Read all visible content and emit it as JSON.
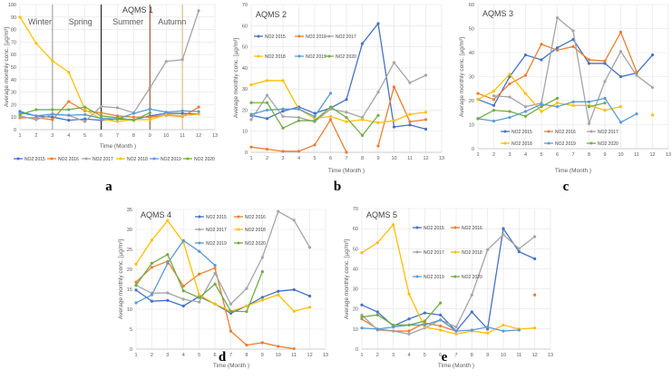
{
  "colors": {
    "NO2 2015": "#4472c4",
    "NO2 2016": "#ed7d31",
    "NO2 2017": "#a5a5a5",
    "NO2 2018": "#ffc000",
    "NO2 2019": "#5b9bd5",
    "NO2 2020": "#70ad47"
  },
  "chart_data": [
    {
      "panel": "a",
      "type": "line",
      "title": "AQMS 1",
      "xlabel": "Time (Month )",
      "ylabel": "Average monthly conc. [µg/m³]",
      "xlim": [
        1,
        13
      ],
      "ylim": [
        0,
        100
      ],
      "ystep": 10,
      "grid": true,
      "legend": "bottom",
      "seasons": [
        {
          "label": "Winter",
          "x": 1.5,
          "boundary": 3,
          "color": "#a6a6a6"
        },
        {
          "label": "Spring",
          "x": 4,
          "boundary": 6,
          "color": "#262626"
        },
        {
          "label": "Summer",
          "x": 6.7,
          "boundary": 9,
          "color": "#a05a3c"
        },
        {
          "label": "Autumn",
          "x": 9.5,
          "boundary": 11,
          "color": "#d9c08c"
        }
      ],
      "series": [
        {
          "name": "NO2 2015",
          "values": [
            14.5,
            11,
            10,
            7.5,
            8.5,
            7.5,
            8.5,
            8,
            11,
            13,
            13,
            12.5
          ]
        },
        {
          "name": "NO2 2016",
          "values": [
            9.5,
            9.5,
            8,
            22.5,
            15,
            13.5,
            11,
            10,
            10,
            11.5,
            10.5,
            18
          ]
        },
        {
          "name": "NO2 2017",
          "values": [
            11,
            8,
            12,
            11.5,
            6.5,
            18.5,
            17.5,
            13.5,
            33.5,
            54.5,
            56,
            95
          ]
        },
        {
          "name": "NO2 2018",
          "values": [
            90,
            69,
            55,
            46,
            16,
            8.5,
            6.5,
            8,
            8,
            12,
            11,
            12.5
          ]
        },
        {
          "name": "NO2 2019",
          "values": [
            13.5,
            11,
            12.5,
            11.5,
            12,
            9,
            8.5,
            13,
            16.5,
            14,
            15,
            14.5
          ]
        },
        {
          "name": "NO2 2020",
          "values": [
            12,
            16,
            16,
            16,
            18,
            11,
            9.5,
            7.5,
            13.5,
            null,
            null,
            null
          ]
        }
      ]
    },
    {
      "panel": "b",
      "type": "line",
      "title": "AQMS 2",
      "xlabel": "Time (Month )",
      "ylabel": "Average monthly conc. [µg/m³]",
      "xlim": [
        1,
        13
      ],
      "ylim": [
        0,
        70
      ],
      "ystep": 10,
      "grid": true,
      "legend": "top-left",
      "series": [
        {
          "name": "NO2 2015",
          "values": [
            17.5,
            16,
            19.5,
            21.5,
            18.5,
            21,
            25,
            51.5,
            61,
            12,
            13,
            11
          ]
        },
        {
          "name": "NO2 2016",
          "values": [
            2.5,
            1.5,
            0.5,
            0.5,
            3.5,
            15.5,
            0,
            null,
            3,
            31,
            14.5,
            15.5
          ]
        },
        {
          "name": "NO2 2017",
          "values": [
            15.5,
            27,
            17,
            16.5,
            14.5,
            20.5,
            19,
            16.5,
            28.5,
            42.5,
            33,
            36.5
          ]
        },
        {
          "name": "NO2 2018",
          "values": [
            32,
            34,
            34,
            20.5,
            16,
            17,
            14.5,
            15.5,
            14,
            15,
            18,
            19
          ]
        },
        {
          "name": "NO2 2019",
          "values": [
            18,
            20,
            20.5,
            20.5,
            17,
            28,
            null,
            null,
            null,
            null,
            null,
            null
          ]
        },
        {
          "name": "NO2 2020",
          "values": [
            23.5,
            23.5,
            11.5,
            15,
            15,
            21.5,
            16.5,
            8,
            17.5,
            null,
            null,
            null
          ]
        }
      ]
    },
    {
      "panel": "c",
      "type": "line",
      "title": "AQMS 3",
      "xlabel": "Time (Month )",
      "ylabel": "Average monthly conc. [µg/m³]",
      "xlim": [
        1,
        13
      ],
      "ylim": [
        0,
        60
      ],
      "ystep": 10,
      "grid": true,
      "legend": "bottom-inside",
      "series": [
        {
          "name": "NO2 2015",
          "values": [
            20.5,
            18,
            30,
            39,
            37,
            42,
            45.5,
            35.5,
            35.5,
            30,
            31.5,
            39
          ]
        },
        {
          "name": "NO2 2016",
          "values": [
            23,
            20.5,
            27,
            30.5,
            43.5,
            41,
            42.5,
            37,
            36.5,
            48.5,
            32,
            null
          ]
        },
        {
          "name": "NO2 2017",
          "values": [
            null,
            22,
            21.5,
            17.5,
            19,
            54.5,
            49,
            10.5,
            28,
            40.5,
            30.5,
            25.5
          ]
        },
        {
          "name": "NO2 2018",
          "values": [
            20.5,
            24,
            31,
            23,
            15.5,
            19,
            18,
            18,
            16,
            17.5,
            null,
            14
          ]
        },
        {
          "name": "NO2 2019",
          "values": [
            12.5,
            11.5,
            13,
            15.5,
            18.5,
            17.5,
            19.5,
            19.5,
            21,
            11,
            14.5,
            null
          ]
        },
        {
          "name": "NO2 2020",
          "values": [
            12.5,
            16,
            15.5,
            13.5,
            17.5,
            21,
            null,
            17.5,
            19,
            null,
            null,
            null
          ]
        }
      ]
    },
    {
      "panel": "d",
      "type": "line",
      "title": "AQMS 4",
      "xlabel": "Time (Month )",
      "ylabel": "Average monthly conc. [µg/m³]",
      "xlim": [
        1,
        13
      ],
      "ylim": [
        0,
        35
      ],
      "ystep": 5,
      "grid": true,
      "legend": "top-right",
      "series": [
        {
          "name": "NO2 2015",
          "values": [
            14.8,
            12,
            12.2,
            10.8,
            13.2,
            11.3,
            9,
            10.8,
            13,
            14.5,
            14.9,
            13.3
          ]
        },
        {
          "name": "NO2 2016",
          "values": [
            16.8,
            20.5,
            22,
            15.8,
            18.8,
            20.3,
            4.5,
            1,
            1.6,
            0.7,
            0.1,
            null
          ]
        },
        {
          "name": "NO2 2017",
          "values": [
            16,
            14,
            14.1,
            12.5,
            11.8,
            19,
            11.3,
            15.2,
            23,
            34.5,
            32.3,
            25.5
          ]
        },
        {
          "name": "NO2 2018",
          "values": [
            21.3,
            27.3,
            32.2,
            26.8,
            13.6,
            11.3,
            9.5,
            10.8,
            12.3,
            13.6,
            9.5,
            10.5
          ]
        },
        {
          "name": "NO2 2019",
          "values": [
            11.6,
            13.6,
            21.5,
            27.2,
            24.5,
            21,
            null,
            null,
            null,
            null,
            null,
            null
          ]
        },
        {
          "name": "NO2 2020",
          "values": [
            16,
            21.5,
            23.7,
            14.6,
            12.9,
            16.3,
            9.5,
            9.4,
            19.4,
            null,
            null,
            null
          ]
        }
      ]
    },
    {
      "panel": "e",
      "type": "line",
      "title": "AQMS 5",
      "xlabel": "Time (Month )",
      "ylabel": "Average monthly conc. [µg/m³]",
      "xlim": [
        1,
        13
      ],
      "ylim": [
        0,
        70
      ],
      "ystep": 10,
      "grid": true,
      "legend": "top-center",
      "series": [
        {
          "name": "NO2 2015",
          "values": [
            22,
            18.5,
            11.5,
            15,
            18,
            17,
            9,
            18.5,
            10,
            60,
            48.5,
            45
          ]
        },
        {
          "name": "NO2 2016",
          "values": [
            15,
            10,
            9,
            9,
            13,
            11.5,
            9,
            null,
            null,
            null,
            null,
            27
          ]
        },
        {
          "name": "NO2 2017",
          "values": [
            17,
            9.5,
            9,
            7.5,
            10.5,
            14.5,
            11,
            27,
            49.5,
            57,
            50,
            56
          ]
        },
        {
          "name": "NO2 2018",
          "values": [
            48,
            53,
            62,
            27.5,
            11,
            9.5,
            7.5,
            9,
            8,
            12,
            10,
            10.5
          ]
        },
        {
          "name": "NO2 2019",
          "values": [
            10.5,
            10,
            11,
            12,
            12,
            14.5,
            9,
            9.5,
            11,
            9,
            9.5,
            null
          ]
        },
        {
          "name": "NO2 2020",
          "values": [
            16,
            17,
            12,
            12,
            14,
            23,
            null,
            null,
            null,
            null,
            null,
            null
          ]
        }
      ]
    }
  ]
}
